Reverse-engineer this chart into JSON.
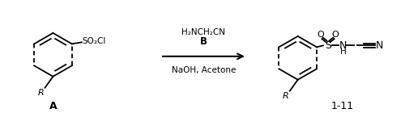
{
  "bg_color": "#ffffff",
  "line_color": "#000000",
  "figsize": [
    5.0,
    1.4
  ],
  "dpi": 100,
  "reagent_above": "H₂NCH₂CN",
  "reagent_bold": "B",
  "reagent_below": "NaOH, Acetone",
  "label_A": "A",
  "label_product": "1-11",
  "SO2Cl_text": "SO₂Cl",
  "R_left": "R",
  "R_right": "R"
}
